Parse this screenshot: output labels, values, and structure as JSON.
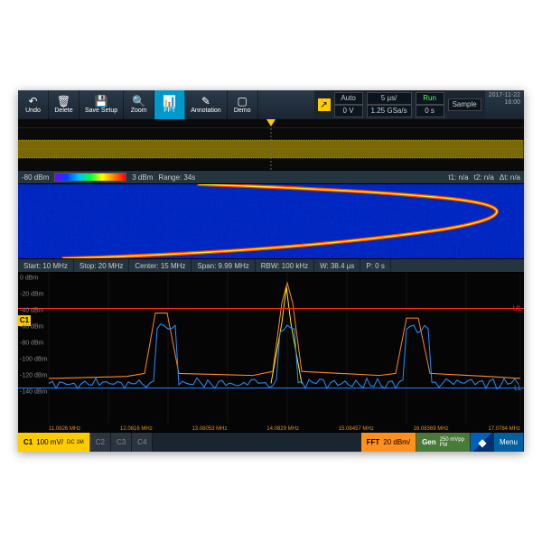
{
  "datetime": {
    "date": "2017-11-22",
    "time": "16:00"
  },
  "toolbar": {
    "undo": "Undo",
    "delete": "Delete",
    "save_setup": "Save Setup",
    "zoom": "Zoom",
    "fft": "FFT",
    "annotation": "Annotation",
    "demo": "Demo"
  },
  "trigger": {
    "mode": "Auto",
    "timediv": "5 µs/",
    "run": "Run",
    "level": "0 V",
    "rate": "1.25 GSa/s",
    "pos": "0 s",
    "acq": "Sample"
  },
  "spec_info": {
    "ref": "-80 dBm",
    "max": "3 dBm",
    "range_lbl": "Range:",
    "range_val": "34s",
    "t1": "t1: n/a",
    "t2": "t2: n/a",
    "dt": "Δt: n/a"
  },
  "params": {
    "start": "Start: 10 MHz",
    "stop": "Stop: 20 MHz",
    "center": "Center: 15 MHz",
    "span": "Span: 9.99 MHz",
    "rbw": "RBW: 100 kHz",
    "w": "W: 38.4 µs",
    "p": "P: 0 s"
  },
  "spectrum": {
    "yticks": [
      "0 dBm",
      "-20 dBm",
      "-40 dBm",
      "-60 dBm",
      "-80 dBm",
      "-100 dBm",
      "-120 dBm",
      "-140 dBm"
    ],
    "ul_label": "UL",
    "ll_label": "LL",
    "ch_label": "C1",
    "xlabels": [
      "11.0826 MHz",
      "12.0816 MHz",
      "13.08053 MHz",
      "14.0829 MHz",
      "15.08457 MHz",
      "16.08369 MHz",
      "17.0784 MHz"
    ]
  },
  "channels": {
    "c1": "C1",
    "c1v": "100 mV/",
    "c1cpl": "DC\n1M",
    "c2": "C2",
    "c3": "C3",
    "c4": "C4",
    "fft": "FFT",
    "fftv": "20 dBm/",
    "gen": "Gen",
    "genv": "250 mVpp\nFM",
    "menu": "Menu"
  }
}
